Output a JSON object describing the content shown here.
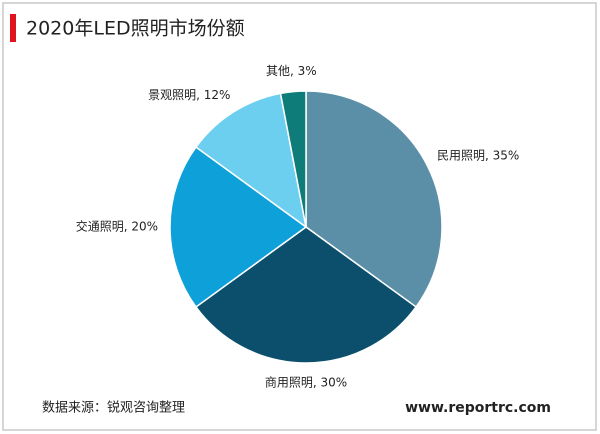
{
  "chart_data": {
    "type": "pie",
    "title": "2020年LED照明市场份额",
    "categories": [
      "民用照明",
      "商用照明",
      "交通照明",
      "景观照明",
      "其他"
    ],
    "values": [
      35,
      30,
      20,
      12,
      3
    ],
    "value_labels": [
      "民用照明, 35%",
      "商用照明, 30%",
      "交通照明, 20%",
      "景观照明, 12%",
      "其他, 3%"
    ],
    "colors": [
      "#5b8fa8",
      "#0b4f6c",
      "#0ea0d8",
      "#6dcff0",
      "#0e7c78"
    ],
    "source": "数据来源：锐观咨询整理",
    "website": "www.reportrc.com"
  }
}
